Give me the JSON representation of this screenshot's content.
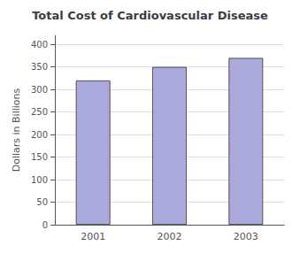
{
  "chart_data": {
    "type": "bar",
    "title": "Total Cost of Cardiovascular Disease",
    "ylabel": "Dollars in Billions",
    "categories": [
      "2001",
      "2002",
      "2003"
    ],
    "values": [
      320,
      350,
      370
    ],
    "color": "#aaaadd",
    "ylim": [
      0,
      420
    ],
    "yticks": [
      0,
      50,
      100,
      150,
      200,
      250,
      300,
      350,
      400
    ],
    "grid": true
  }
}
